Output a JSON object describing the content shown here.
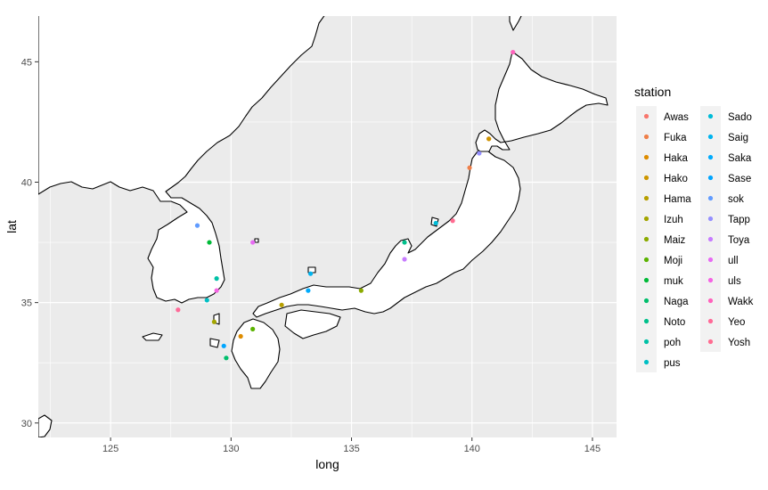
{
  "chart_data": {
    "type": "scatter",
    "xlabel": "long",
    "ylabel": "lat",
    "xlim": [
      122,
      146
    ],
    "ylim": [
      29.4,
      46.9
    ],
    "x_ticks": [
      125,
      130,
      135,
      140,
      145
    ],
    "y_ticks": [
      30,
      35,
      40,
      45
    ],
    "background": "#ebebeb",
    "grid": true,
    "legend": {
      "title": "station",
      "placement": "right",
      "columns": 2
    },
    "series": [
      {
        "name": "Awas",
        "color": "#F8766D",
        "x": 140.7,
        "y": 41.8
      },
      {
        "name": "Fuka",
        "color": "#EF7F49",
        "x": 139.9,
        "y": 40.6
      },
      {
        "name": "Haka",
        "color": "#DE8C00",
        "x": 130.4,
        "y": 33.6
      },
      {
        "name": "Hako",
        "color": "#CD9600",
        "x": 140.7,
        "y": 41.8
      },
      {
        "name": "Hama",
        "color": "#B79F00",
        "x": 132.1,
        "y": 34.9
      },
      {
        "name": "Izuh",
        "color": "#A3A500",
        "x": 129.3,
        "y": 34.2
      },
      {
        "name": "Maiz",
        "color": "#8BAB00",
        "x": 135.4,
        "y": 35.5
      },
      {
        "name": "Moji",
        "color": "#5BB300",
        "x": 130.9,
        "y": 33.9
      },
      {
        "name": "muk",
        "color": "#00BA38",
        "x": 129.1,
        "y": 37.5
      },
      {
        "name": "Naga",
        "color": "#00BE6C",
        "x": 129.8,
        "y": 32.7
      },
      {
        "name": "Noto",
        "color": "#00C08B",
        "x": 137.2,
        "y": 37.5
      },
      {
        "name": "poh",
        "color": "#00C1A6",
        "x": 129.4,
        "y": 36.0
      },
      {
        "name": "pus",
        "color": "#00BFC4",
        "x": 129.0,
        "y": 35.1
      },
      {
        "name": "Sado",
        "color": "#00BCD8",
        "x": 138.5,
        "y": 38.3
      },
      {
        "name": "Saig",
        "color": "#00B4EF",
        "x": 133.3,
        "y": 36.2
      },
      {
        "name": "Saka",
        "color": "#00ABFD",
        "x": 133.2,
        "y": 35.5
      },
      {
        "name": "Sase",
        "color": "#00A5FF",
        "x": 129.7,
        "y": 33.2
      },
      {
        "name": "sok",
        "color": "#619CFF",
        "x": 128.6,
        "y": 38.2
      },
      {
        "name": "Tapp",
        "color": "#9590FF",
        "x": 140.3,
        "y": 41.2
      },
      {
        "name": "Toya",
        "color": "#C77CFF",
        "x": 137.2,
        "y": 36.8
      },
      {
        "name": "ull",
        "color": "#E76BF3",
        "x": 130.9,
        "y": 37.5
      },
      {
        "name": "uls",
        "color": "#F564E3",
        "x": 129.4,
        "y": 35.5
      },
      {
        "name": "Wakk",
        "color": "#FF62BC",
        "x": 141.7,
        "y": 45.4
      },
      {
        "name": "Yeo",
        "color": "#FF6A98",
        "x": 127.8,
        "y": 34.7
      },
      {
        "name": "Yosh",
        "color": "#FF6C91",
        "x": 139.2,
        "y": 38.4
      }
    ]
  }
}
